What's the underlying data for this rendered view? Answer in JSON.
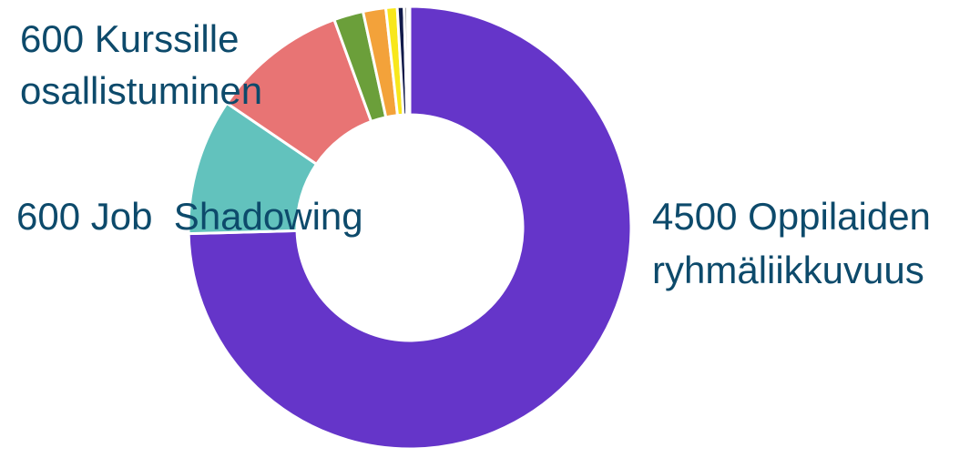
{
  "chart_data": {
    "type": "pie",
    "donut": true,
    "categories": [
      "Oppilaiden ryhmäliikkuvuus",
      "Job Shadowing",
      "Kurssille osallistuminen",
      "",
      "",
      "",
      "",
      "",
      ""
    ],
    "values": [
      4500,
      600,
      600,
      130,
      100,
      50,
      30,
      15,
      10
    ],
    "colors": [
      "#6535c9",
      "#62c2bd",
      "#e87474",
      "#6b9f3a",
      "#f3a23a",
      "#f8e71c",
      "#111a4a",
      "#8a8a8a",
      "#1a1a1a"
    ],
    "labels": [
      {
        "lines": [
          "4500 Oppilaiden",
          "ryhmäliikkuvuus"
        ]
      },
      {
        "lines": [
          "600 Job  Shadowing"
        ]
      },
      {
        "lines": [
          "600 Kurssille",
          "osallistuminen"
        ]
      }
    ],
    "legend": "none",
    "grid": false
  }
}
